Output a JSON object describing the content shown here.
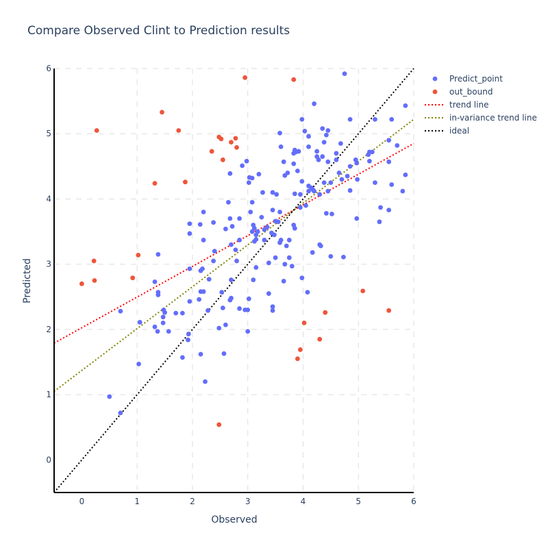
{
  "chart_data": {
    "type": "scatter",
    "title": "Compare Observed Clint to Prediction results",
    "xlabel": "Observed",
    "ylabel": "Predicted",
    "xlim": [
      -0.5,
      6
    ],
    "ylim": [
      -0.5,
      6
    ],
    "xticks": [
      0,
      1,
      2,
      3,
      4,
      5,
      6
    ],
    "yticks": [
      0,
      1,
      2,
      3,
      4,
      5,
      6
    ],
    "grid": true,
    "grid_style": "dashed",
    "legend_position": "top-right",
    "series": [
      {
        "name": "Predict_point",
        "kind": "markers",
        "color": "#636efa",
        "points": [
          [
            4.75,
            5.92
          ],
          [
            4.2,
            5.46
          ],
          [
            5.85,
            5.43
          ],
          [
            4.35,
            5.08
          ],
          [
            4.03,
            5.04
          ],
          [
            3.58,
            5.01
          ],
          [
            4.45,
            5.05
          ],
          [
            4.42,
            4.98
          ],
          [
            4.1,
            4.96
          ],
          [
            3.98,
            5.22
          ],
          [
            4.85,
            5.22
          ],
          [
            5.3,
            5.22
          ],
          [
            5.6,
            5.22
          ],
          [
            5.55,
            4.9
          ],
          [
            5.7,
            4.82
          ],
          [
            4.38,
            4.87
          ],
          [
            4.68,
            4.85
          ],
          [
            3.6,
            4.8
          ],
          [
            4.1,
            4.8
          ],
          [
            3.85,
            4.75
          ],
          [
            3.87,
            4.72
          ],
          [
            3.92,
            4.73
          ],
          [
            4.25,
            4.73
          ],
          [
            3.83,
            4.7
          ],
          [
            4.6,
            4.7
          ],
          [
            5.2,
            4.72
          ],
          [
            5.25,
            4.72
          ],
          [
            5.18,
            4.68
          ],
          [
            4.25,
            4.65
          ],
          [
            4.35,
            4.65
          ],
          [
            4.28,
            4.6
          ],
          [
            4.6,
            4.6
          ],
          [
            4.95,
            4.6
          ],
          [
            5.2,
            4.58
          ],
          [
            5.55,
            4.57
          ],
          [
            3.65,
            4.57
          ],
          [
            3.83,
            4.54
          ],
          [
            2.9,
            4.51
          ],
          [
            2.98,
            4.58
          ],
          [
            4.45,
            4.57
          ],
          [
            4.97,
            4.55
          ],
          [
            4.85,
            4.5
          ],
          [
            4.65,
            4.4
          ],
          [
            3.72,
            4.4
          ],
          [
            3.9,
            4.43
          ],
          [
            5.85,
            4.37
          ],
          [
            3.67,
            4.36
          ],
          [
            2.68,
            4.39
          ],
          [
            3.2,
            4.38
          ],
          [
            3.03,
            4.33
          ],
          [
            3.08,
            4.32
          ],
          [
            4.8,
            4.35
          ],
          [
            4.7,
            4.3
          ],
          [
            4.98,
            4.3
          ],
          [
            3.98,
            4.27
          ],
          [
            3.02,
            4.25
          ],
          [
            4.38,
            4.25
          ],
          [
            4.5,
            4.25
          ],
          [
            5.3,
            4.25
          ],
          [
            5.6,
            4.22
          ],
          [
            4.1,
            4.2
          ],
          [
            4.15,
            4.17
          ],
          [
            4.1,
            4.12
          ],
          [
            4.18,
            4.14
          ],
          [
            4.85,
            4.13
          ],
          [
            4.45,
            4.12
          ],
          [
            3.52,
            4.07
          ],
          [
            3.45,
            4.1
          ],
          [
            3.27,
            4.1
          ],
          [
            4.2,
            4.12
          ],
          [
            4.3,
            4.07
          ],
          [
            5.8,
            4.12
          ],
          [
            3.85,
            4.08
          ],
          [
            3.95,
            4.07
          ],
          [
            2.65,
            3.95
          ],
          [
            3.08,
            3.95
          ],
          [
            4.05,
            3.9
          ],
          [
            3.95,
            3.87
          ],
          [
            5.4,
            3.87
          ],
          [
            2.2,
            3.8
          ],
          [
            3.58,
            3.8
          ],
          [
            3.45,
            3.83
          ],
          [
            4.42,
            3.78
          ],
          [
            4.52,
            3.77
          ],
          [
            5.55,
            3.83
          ],
          [
            3.05,
            3.8
          ],
          [
            2.68,
            3.7
          ],
          [
            2.85,
            3.7
          ],
          [
            3.25,
            3.72
          ],
          [
            4.97,
            3.7
          ],
          [
            5.38,
            3.65
          ],
          [
            3.5,
            3.66
          ],
          [
            3.55,
            3.65
          ],
          [
            2.38,
            3.64
          ],
          [
            1.95,
            3.62
          ],
          [
            2.14,
            3.61
          ],
          [
            3.1,
            3.6
          ],
          [
            2.72,
            3.58
          ],
          [
            3.12,
            3.55
          ],
          [
            3.18,
            3.5
          ],
          [
            3.35,
            3.57
          ],
          [
            3.3,
            3.53
          ],
          [
            2.6,
            3.54
          ],
          [
            3.08,
            3.5
          ],
          [
            3.83,
            3.6
          ],
          [
            3.85,
            3.55
          ],
          [
            1.95,
            3.47
          ],
          [
            3.43,
            3.48
          ],
          [
            3.15,
            3.45
          ],
          [
            3.48,
            3.45
          ],
          [
            3.15,
            3.38
          ],
          [
            2.2,
            3.37
          ],
          [
            2.85,
            3.37
          ],
          [
            3.3,
            3.37
          ],
          [
            3.6,
            3.37
          ],
          [
            3.75,
            3.37
          ],
          [
            3.58,
            3.33
          ],
          [
            4.3,
            3.3
          ],
          [
            3.12,
            3.35
          ],
          [
            2.7,
            3.3
          ],
          [
            4.32,
            3.28
          ],
          [
            3.7,
            3.28
          ],
          [
            2.78,
            3.22
          ],
          [
            2.4,
            3.2
          ],
          [
            4.17,
            3.18
          ],
          [
            1.38,
            3.15
          ],
          [
            4.5,
            3.12
          ],
          [
            4.73,
            3.11
          ],
          [
            3.5,
            3.1
          ],
          [
            3.75,
            3.1
          ],
          [
            2.8,
            3.05
          ],
          [
            2.38,
            3.05
          ],
          [
            3.38,
            3.02
          ],
          [
            3.67,
            3.0
          ],
          [
            3.8,
            2.97
          ],
          [
            1.95,
            2.93
          ],
          [
            2.18,
            2.93
          ],
          [
            3.15,
            2.95
          ],
          [
            2.15,
            2.9
          ],
          [
            3.98,
            2.79
          ],
          [
            2.3,
            2.77
          ],
          [
            2.7,
            2.76
          ],
          [
            3.1,
            2.76
          ],
          [
            3.65,
            2.74
          ],
          [
            1.32,
            2.73
          ],
          [
            2.15,
            2.58
          ],
          [
            2.2,
            2.58
          ],
          [
            4.08,
            2.57
          ],
          [
            2.53,
            2.57
          ],
          [
            1.38,
            2.57
          ],
          [
            1.38,
            2.53
          ],
          [
            3.38,
            2.55
          ],
          [
            2.7,
            2.48
          ],
          [
            2.68,
            2.45
          ],
          [
            3.02,
            2.47
          ],
          [
            2.12,
            2.46
          ],
          [
            1.95,
            2.43
          ],
          [
            0.7,
            2.28
          ],
          [
            1.48,
            2.3
          ],
          [
            1.5,
            2.26
          ],
          [
            1.7,
            2.25
          ],
          [
            1.82,
            2.25
          ],
          [
            2.85,
            2.32
          ],
          [
            2.95,
            2.3
          ],
          [
            3.0,
            2.3
          ],
          [
            3.45,
            2.35
          ],
          [
            3.45,
            2.29
          ],
          [
            2.28,
            2.29
          ],
          [
            2.55,
            2.33
          ],
          [
            1.47,
            2.19
          ],
          [
            1.05,
            2.11
          ],
          [
            1.47,
            2.1
          ],
          [
            1.32,
            2.04
          ],
          [
            2.6,
            2.07
          ],
          [
            2.48,
            2.02
          ],
          [
            1.37,
            1.97
          ],
          [
            1.57,
            1.97
          ],
          [
            1.93,
            1.93
          ],
          [
            1.92,
            1.84
          ],
          [
            3.0,
            1.97
          ],
          [
            2.15,
            1.62
          ],
          [
            2.57,
            1.63
          ],
          [
            1.82,
            1.57
          ],
          [
            1.03,
            1.47
          ],
          [
            2.23,
            1.2
          ],
          [
            0.5,
            0.97
          ],
          [
            0.7,
            0.72
          ]
        ]
      },
      {
        "name": "out_bound",
        "kind": "markers",
        "color": "#ef553b",
        "points": [
          [
            2.95,
            5.86
          ],
          [
            3.83,
            5.83
          ],
          [
            1.45,
            5.33
          ],
          [
            0.27,
            5.05
          ],
          [
            1.75,
            5.05
          ],
          [
            2.48,
            4.95
          ],
          [
            2.78,
            4.93
          ],
          [
            2.52,
            4.92
          ],
          [
            2.7,
            4.87
          ],
          [
            2.8,
            4.79
          ],
          [
            2.35,
            4.73
          ],
          [
            2.55,
            4.6
          ],
          [
            1.32,
            4.24
          ],
          [
            1.87,
            4.26
          ],
          [
            1.02,
            3.14
          ],
          [
            0.22,
            3.05
          ],
          [
            0.92,
            2.79
          ],
          [
            0.0,
            2.7
          ],
          [
            0.23,
            2.75
          ],
          [
            5.08,
            2.59
          ],
          [
            5.55,
            2.29
          ],
          [
            4.4,
            2.26
          ],
          [
            4.02,
            2.1
          ],
          [
            4.3,
            1.85
          ],
          [
            3.95,
            1.69
          ],
          [
            3.9,
            1.55
          ],
          [
            2.48,
            0.54
          ]
        ]
      },
      {
        "name": "trend line",
        "kind": "line",
        "color": "#ff0000",
        "dash": "dot",
        "points": [
          [
            -0.5,
            1.79
          ],
          [
            6,
            4.85
          ]
        ]
      },
      {
        "name": "in-variance trend line",
        "kind": "line",
        "color": "#808000",
        "dash": "dot",
        "points": [
          [
            -0.5,
            1.05
          ],
          [
            6,
            5.22
          ]
        ]
      },
      {
        "name": "ideal",
        "kind": "line",
        "color": "#000000",
        "dash": "dot",
        "points": [
          [
            -0.5,
            -0.5
          ],
          [
            6,
            6
          ]
        ]
      }
    ]
  }
}
